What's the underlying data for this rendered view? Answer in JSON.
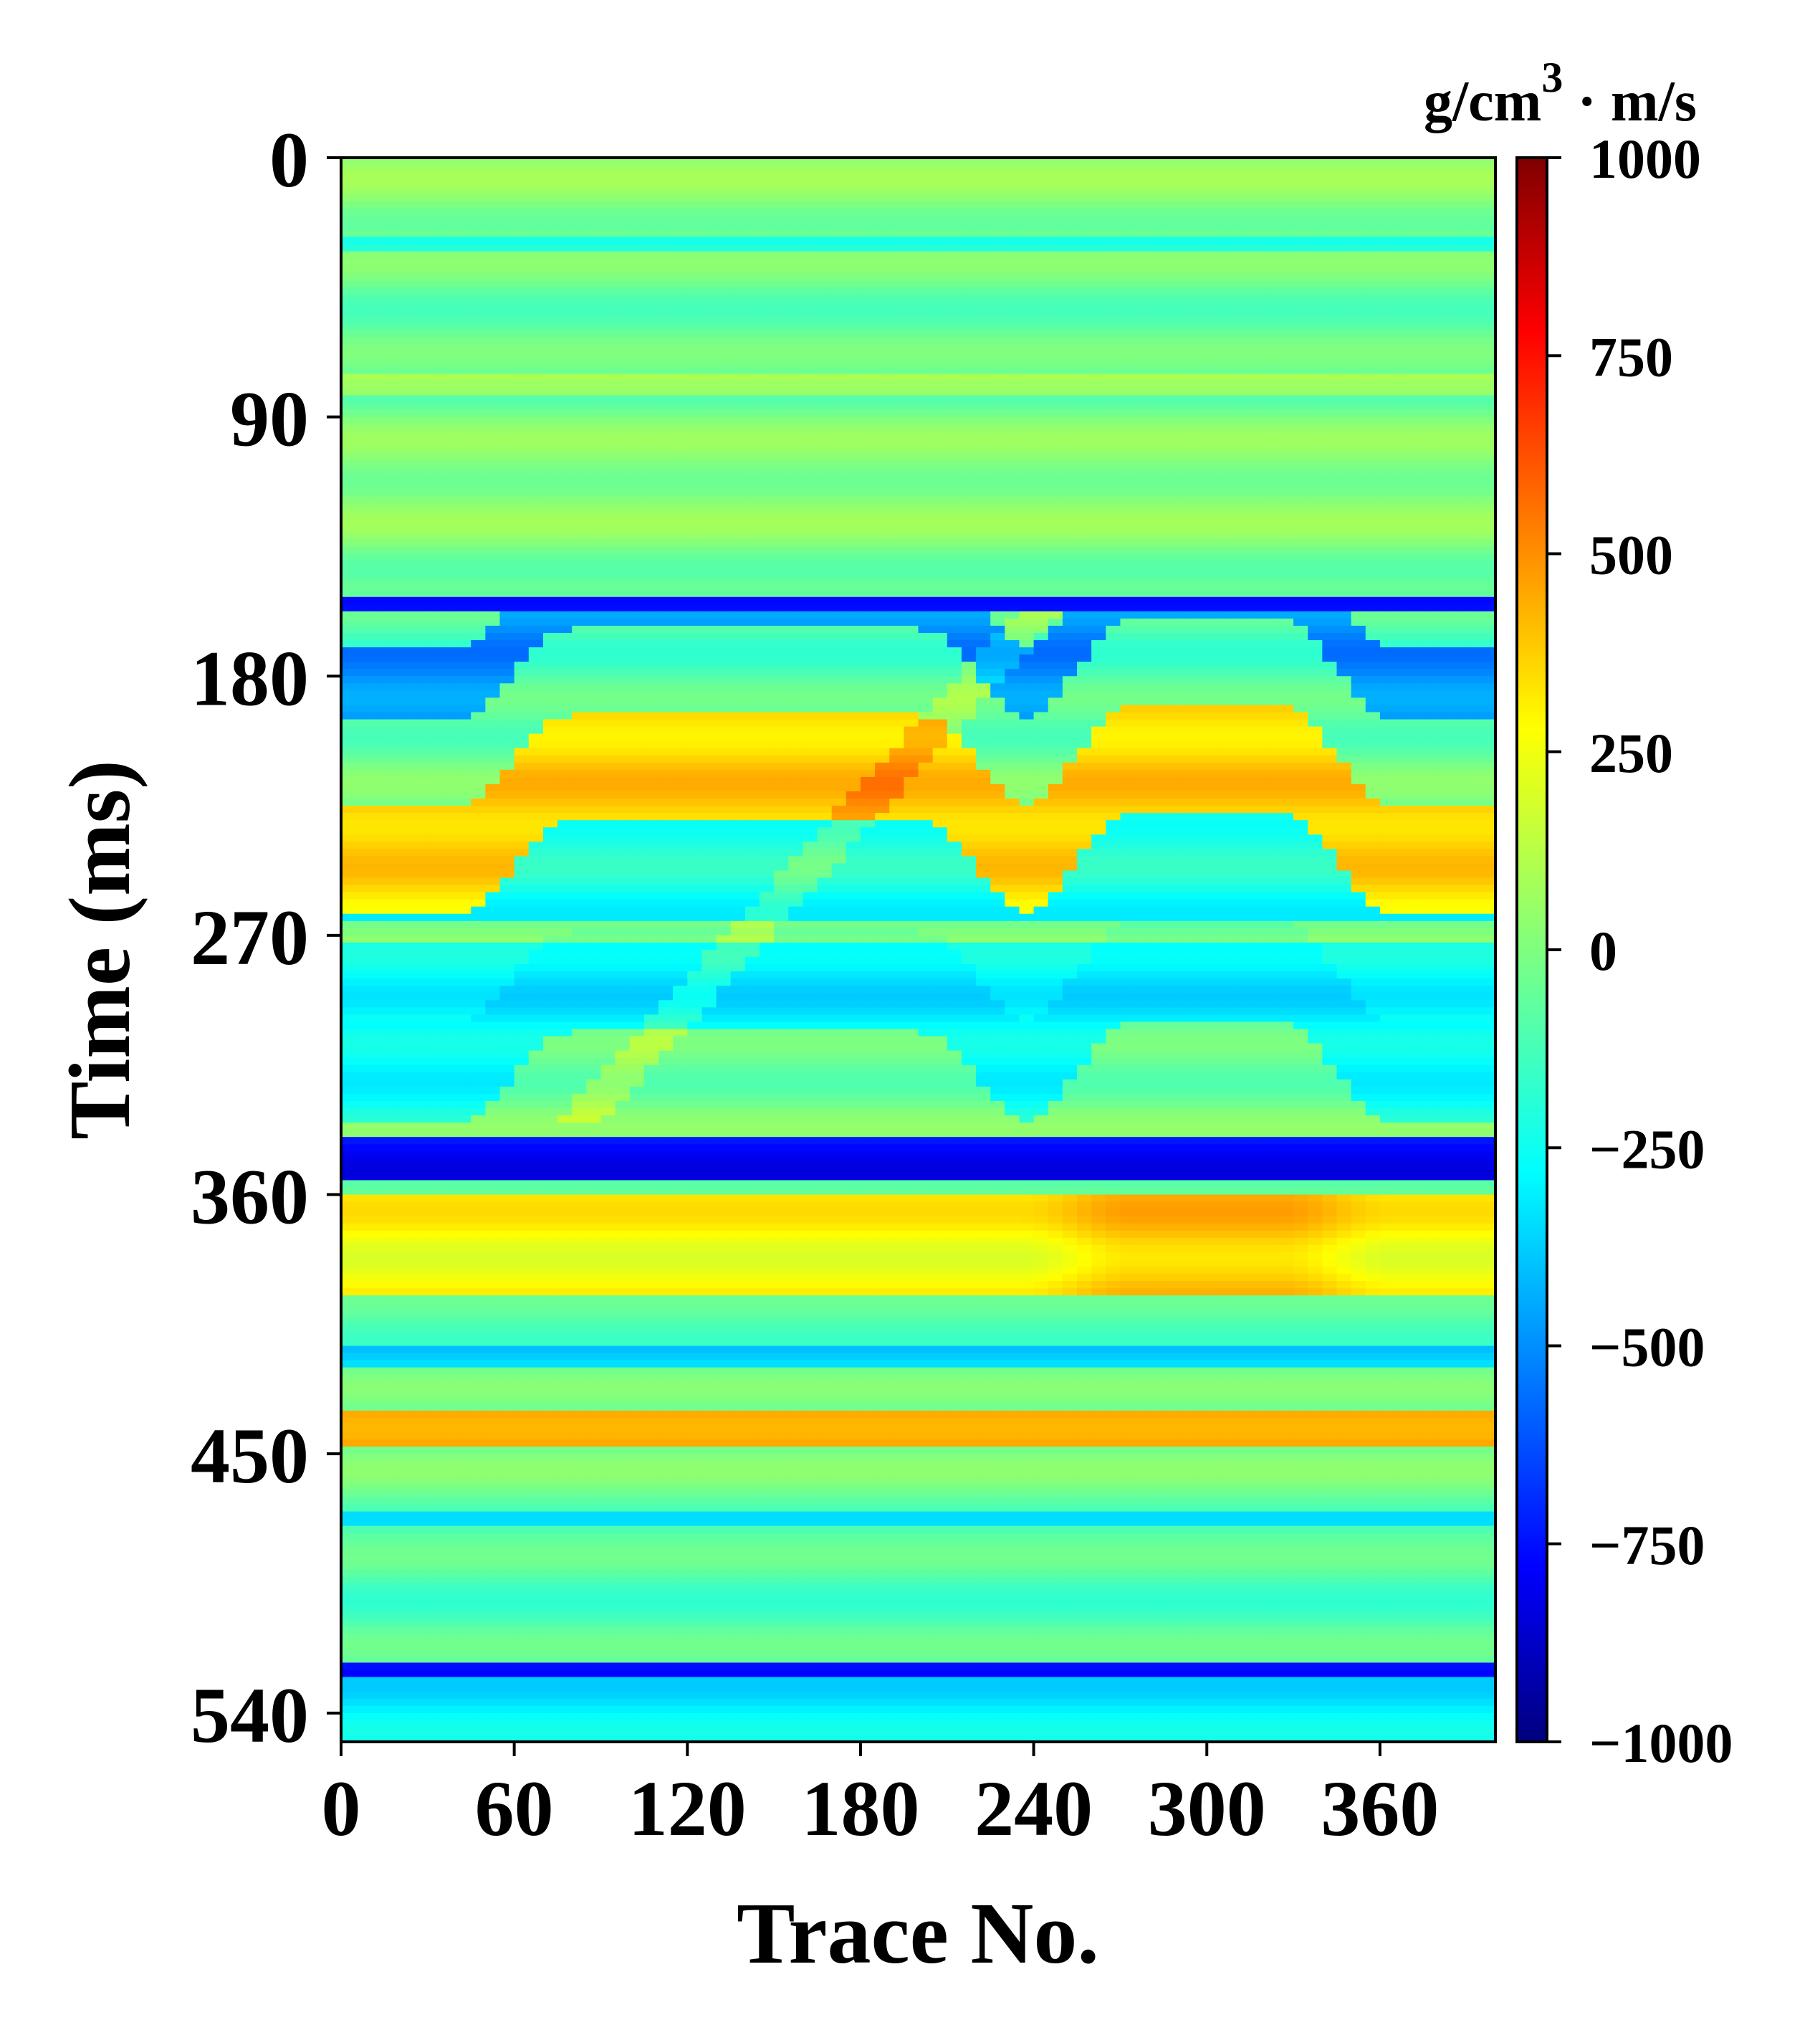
{
  "chart_data": {
    "type": "heatmap",
    "title": "",
    "xlabel": "Trace No.",
    "ylabel": "Time (ms)",
    "xlim": [
      0,
      400
    ],
    "ylim": [
      0,
      550
    ],
    "y_inverted": true,
    "x_ticks": [
      0,
      60,
      120,
      180,
      240,
      300,
      360
    ],
    "y_ticks": [
      0,
      90,
      180,
      270,
      360,
      450,
      540
    ],
    "colorbar": {
      "label": "g/cm³ · m/s",
      "label_base": "g/cm",
      "label_sup": "3",
      "label_tail": " · m/s",
      "range": [
        -1000,
        1000
      ],
      "ticks": [
        1000,
        750,
        500,
        250,
        0,
        -250,
        -500,
        -750,
        -1000
      ],
      "tick_labels": [
        "1000",
        "750",
        "500",
        "250",
        "0",
        "−250",
        "−500",
        "−750",
        "−1000"
      ],
      "colormap": "jet"
    },
    "grid": false,
    "description_values": {
      "background_level": 0,
      "major_features": [
        {
          "kind": "horizontal_band",
          "time_ms": 155,
          "value": -900
        },
        {
          "kind": "folded_layer",
          "time_ms_range": [
            160,
            200
          ],
          "value": -450
        },
        {
          "kind": "folded_layer",
          "time_ms_range": [
            230,
            265
          ],
          "value": 600
        },
        {
          "kind": "horizontal_band",
          "time_ms": 268,
          "value": 350
        },
        {
          "kind": "horizontal_band",
          "time_ms_range": [
            343,
            355
          ],
          "value": -750
        },
        {
          "kind": "horizontal_band",
          "time_ms_range": [
            365,
            395
          ],
          "value": 350
        },
        {
          "kind": "horizontal_band",
          "time_ms": 442,
          "value": 500
        },
        {
          "kind": "horizontal_band",
          "time_ms_range": [
            525,
            550
          ],
          "value": -250
        }
      ]
    }
  }
}
